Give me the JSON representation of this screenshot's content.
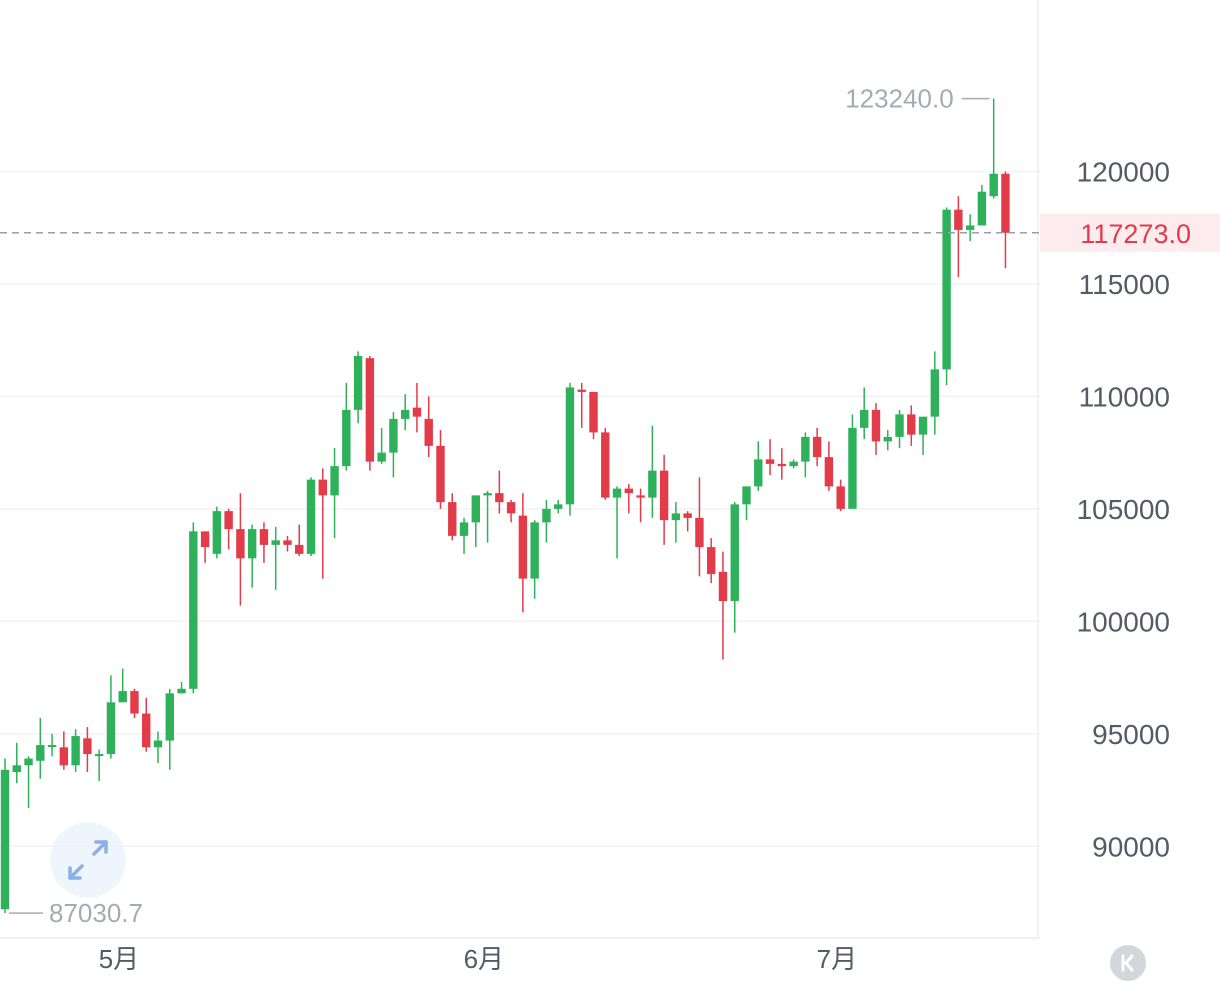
{
  "chart_data": {
    "type": "candlestick",
    "y_range": [
      86500,
      125000
    ],
    "y_ticks": [
      {
        "value": 90000,
        "label": "90000"
      },
      {
        "value": 95000,
        "label": "95000"
      },
      {
        "value": 100000,
        "label": "100000"
      },
      {
        "value": 105000,
        "label": "105000"
      },
      {
        "value": 110000,
        "label": "110000"
      },
      {
        "value": 115000,
        "label": "115000"
      },
      {
        "value": 120000,
        "label": "120000"
      }
    ],
    "x_ticks": [
      {
        "index": 9,
        "label": "5月"
      },
      {
        "index": 40,
        "label": "6月"
      },
      {
        "index": 70,
        "label": "7月"
      }
    ],
    "grid": true,
    "up_color": "#2eb15a",
    "down_color": "#e23b4a",
    "candles": [
      [
        87200,
        93400,
        93900,
        87030.7
      ],
      [
        93300,
        93600,
        94600,
        92800
      ],
      [
        93600,
        93900,
        94000,
        91700
      ],
      [
        93800,
        94500,
        95700,
        93000
      ],
      [
        94500,
        94500,
        95000,
        94000
      ],
      [
        94400,
        93600,
        95100,
        93400
      ],
      [
        93600,
        94900,
        95200,
        93300
      ],
      [
        94800,
        94100,
        95300,
        93300
      ],
      [
        94100,
        94100,
        94300,
        92900
      ],
      [
        94100,
        96400,
        97600,
        93900
      ],
      [
        96400,
        96900,
        97900,
        96500
      ],
      [
        96900,
        95900,
        97000,
        95700
      ],
      [
        95900,
        94400,
        96600,
        94200
      ],
      [
        94400,
        94700,
        95100,
        93700
      ],
      [
        94700,
        96800,
        97000,
        93400
      ],
      [
        96800,
        97000,
        97300,
        96800
      ],
      [
        97000,
        104000,
        104400,
        96800
      ],
      [
        104000,
        103300,
        104000,
        102600
      ],
      [
        103000,
        104900,
        105100,
        102800
      ],
      [
        104900,
        104100,
        105000,
        103200
      ],
      [
        104100,
        102800,
        105700,
        100700
      ],
      [
        102800,
        104100,
        104300,
        101500
      ],
      [
        104100,
        103400,
        104400,
        102600
      ],
      [
        103400,
        103600,
        104200,
        101400
      ],
      [
        103600,
        103400,
        103800,
        103100
      ],
      [
        103400,
        103000,
        104300,
        102900
      ],
      [
        103000,
        106300,
        106400,
        102900
      ],
      [
        106300,
        105600,
        106800,
        101900
      ],
      [
        105600,
        106900,
        107700,
        103700
      ],
      [
        106900,
        109400,
        110600,
        106700
      ],
      [
        109400,
        111800,
        112000,
        108800
      ],
      [
        111700,
        107100,
        111800,
        106700
      ],
      [
        107100,
        107500,
        108600,
        107000
      ],
      [
        107500,
        109000,
        109300,
        106400
      ],
      [
        109000,
        109400,
        110100,
        108500
      ],
      [
        109500,
        109100,
        110600,
        108400
      ],
      [
        109000,
        107800,
        110000,
        107300
      ],
      [
        107800,
        105300,
        108500,
        105000
      ],
      [
        105300,
        103800,
        105700,
        103600
      ],
      [
        103800,
        104400,
        104600,
        103000
      ],
      [
        104400,
        105600,
        105600,
        103300
      ],
      [
        105600,
        105700,
        105800,
        103500
      ],
      [
        105700,
        105300,
        106700,
        104800
      ],
      [
        105300,
        104800,
        105400,
        104400
      ],
      [
        104700,
        101900,
        105700,
        100400
      ],
      [
        101900,
        104400,
        104500,
        101000
      ],
      [
        104400,
        105000,
        105400,
        103500
      ],
      [
        105000,
        105200,
        105400,
        104800
      ],
      [
        105200,
        110400,
        110600,
        104700
      ],
      [
        110300,
        110200,
        110600,
        108600
      ],
      [
        110200,
        108400,
        110200,
        108100
      ],
      [
        108400,
        105500,
        108600,
        105400
      ],
      [
        105500,
        105900,
        106000,
        102800
      ],
      [
        105900,
        105700,
        106100,
        104800
      ],
      [
        105600,
        105500,
        105900,
        104400
      ],
      [
        105500,
        106700,
        108700,
        104600
      ],
      [
        106700,
        104500,
        107400,
        103400
      ],
      [
        104500,
        104800,
        105300,
        103500
      ],
      [
        104800,
        104600,
        104900,
        104000
      ],
      [
        104600,
        103300,
        106400,
        102000
      ],
      [
        103300,
        102100,
        103700,
        101700
      ],
      [
        102200,
        100900,
        103100,
        98300
      ],
      [
        100900,
        105200,
        105300,
        99500
      ],
      [
        105200,
        106000,
        106000,
        104500
      ],
      [
        106000,
        107200,
        108000,
        105800
      ],
      [
        107200,
        107000,
        108100,
        106500
      ],
      [
        107000,
        106900,
        107700,
        106300
      ],
      [
        106900,
        107100,
        107200,
        106800
      ],
      [
        107100,
        108200,
        108400,
        106400
      ],
      [
        108200,
        107300,
        108600,
        106900
      ],
      [
        107300,
        106000,
        108000,
        105800
      ],
      [
        106000,
        105000,
        106300,
        104900
      ],
      [
        105000,
        108600,
        109200,
        105400
      ],
      [
        108600,
        109400,
        110400,
        108100
      ],
      [
        109400,
        108000,
        109700,
        107400
      ],
      [
        108000,
        108200,
        108500,
        107600
      ],
      [
        108200,
        109200,
        109400,
        107700
      ],
      [
        109200,
        108300,
        109600,
        107800
      ],
      [
        108300,
        109100,
        108900,
        107400
      ],
      [
        109100,
        111200,
        112000,
        108300
      ],
      [
        111200,
        118300,
        118400,
        110500
      ],
      [
        118300,
        117400,
        118900,
        115300
      ],
      [
        117400,
        117600,
        118100,
        116900
      ],
      [
        117600,
        119100,
        119400,
        117800
      ],
      [
        118900,
        119900,
        123240.0,
        118800
      ],
      [
        119900,
        117273.0,
        120000,
        115700
      ]
    ],
    "max_label": "123240.0",
    "min_label": "87030.7",
    "last_price_label": "117273.0"
  },
  "controls": {
    "expand_icon": "expand-arrows-icon",
    "collapse_icon": "collapse-to-start-icon"
  }
}
